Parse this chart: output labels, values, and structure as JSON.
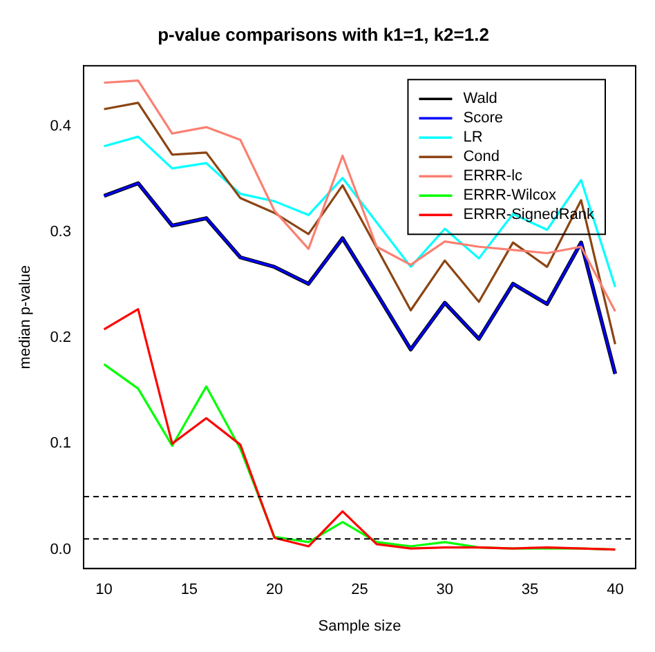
{
  "chart_data": {
    "type": "line",
    "title": "p-value comparisons with k1=1, k2=1.2",
    "xlabel": "Sample size",
    "ylabel": "median p-value",
    "x": [
      10,
      12,
      14,
      16,
      18,
      20,
      22,
      24,
      26,
      28,
      30,
      32,
      34,
      36,
      38,
      40
    ],
    "xlim": [
      8.8,
      41.2
    ],
    "xticks": [
      10,
      15,
      20,
      25,
      30,
      35,
      40
    ],
    "ylim": [
      -0.018,
      0.457
    ],
    "yticks": [
      {
        "value": 0,
        "label": "0.0"
      },
      0.1,
      0.2,
      0.3,
      0.4
    ],
    "grid": false,
    "legend": "top right",
    "marker": "none",
    "line_style": "solid",
    "ref_lines": [
      {
        "axis": "y",
        "value": 0.05,
        "color": "#000000",
        "line_style": "dashed"
      },
      {
        "axis": "y",
        "value": 0.01,
        "color": "#000000",
        "line_style": "dashed"
      }
    ],
    "series": [
      {
        "name": "Wald",
        "color": "#000000",
        "values": [
          0.334,
          0.346,
          0.306,
          0.313,
          0.276,
          0.267,
          0.251,
          0.294,
          0.242,
          0.189,
          0.233,
          0.199,
          0.251,
          0.232,
          0.29,
          0.166
        ]
      },
      {
        "name": "Score",
        "color": "#0000ff",
        "values": [
          0.334,
          0.346,
          0.306,
          0.313,
          0.276,
          0.267,
          0.251,
          0.294,
          0.242,
          0.189,
          0.233,
          0.199,
          0.251,
          0.232,
          0.29,
          0.166
        ]
      },
      {
        "name": "LR",
        "color": "#00ffff",
        "values": [
          0.381,
          0.39,
          0.36,
          0.365,
          0.336,
          0.329,
          0.316,
          0.351,
          0.309,
          0.267,
          0.303,
          0.275,
          0.317,
          0.302,
          0.349,
          0.248
        ]
      },
      {
        "name": "Cond",
        "color": "#8b4513",
        "values": [
          0.416,
          0.422,
          0.373,
          0.375,
          0.332,
          0.318,
          0.298,
          0.344,
          0.285,
          0.226,
          0.273,
          0.234,
          0.29,
          0.267,
          0.33,
          0.194
        ]
      },
      {
        "name": "ERRR-lc",
        "color": "#fa8072",
        "values": [
          0.441,
          0.443,
          0.393,
          0.399,
          0.387,
          0.32,
          0.284,
          0.372,
          0.286,
          0.269,
          0.291,
          0.286,
          0.283,
          0.28,
          0.286,
          0.225
        ]
      },
      {
        "name": "ERRR-Wilcox",
        "color": "#00ff00",
        "values": [
          0.175,
          0.152,
          0.098,
          0.154,
          0.095,
          0.012,
          0.007,
          0.026,
          0.007,
          0.003,
          0.007,
          0.002,
          0.001,
          0.001,
          0.001,
          0
        ]
      },
      {
        "name": "ERRR-SignedRank",
        "color": "#ff0000",
        "values": [
          0.208,
          0.227,
          0.1,
          0.124,
          0.099,
          0.011,
          0.003,
          0.036,
          0.005,
          0.001,
          0.002,
          0.002,
          0.001,
          0.002,
          0.001,
          0
        ]
      }
    ]
  }
}
